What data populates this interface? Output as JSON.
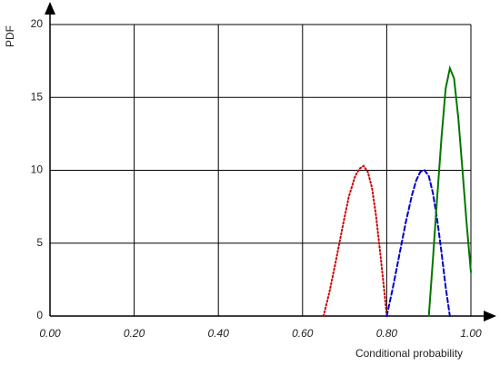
{
  "chart_data": {
    "type": "line",
    "xlabel": "Conditional probability",
    "ylabel": "PDF",
    "xlim": [
      0,
      1
    ],
    "ylim": [
      0,
      20
    ],
    "xticks": [
      {
        "value": 0,
        "label": "0.00"
      },
      {
        "value": 0.2,
        "label": "0.20"
      },
      {
        "value": 0.4,
        "label": "0.40"
      },
      {
        "value": 0.6,
        "label": "0.60"
      },
      {
        "value": 0.8,
        "label": "0.80"
      },
      {
        "value": 1,
        "label": "1.00"
      }
    ],
    "yticks": [
      0,
      5,
      10,
      15,
      20
    ],
    "grid": true,
    "series": [
      {
        "color": "#cc0000",
        "dash": "dotted",
        "x": [
          0.65,
          0.665,
          0.68,
          0.695,
          0.71,
          0.725,
          0.735,
          0.745,
          0.755,
          0.765,
          0.775,
          0.785,
          0.795,
          0.8
        ],
        "values": [
          0,
          1.8,
          3.9,
          6.1,
          8.2,
          9.6,
          10.1,
          10.3,
          9.9,
          8.8,
          6.8,
          4.2,
          1.5,
          0
        ]
      },
      {
        "color": "#0000cc",
        "dash": "dashed",
        "x": [
          0.8,
          0.815,
          0.83,
          0.845,
          0.86,
          0.87,
          0.88,
          0.89,
          0.9,
          0.91,
          0.92,
          0.93,
          0.94,
          0.95
        ],
        "values": [
          0,
          2.0,
          4.2,
          6.4,
          8.3,
          9.3,
          9.9,
          10.0,
          9.6,
          8.4,
          6.6,
          4.4,
          2.0,
          0
        ]
      },
      {
        "color": "#007700",
        "dash": "solid",
        "x": [
          0.9,
          0.91,
          0.92,
          0.93,
          0.94,
          0.95,
          0.96,
          0.97,
          0.98,
          0.99,
          1.0
        ],
        "values": [
          0,
          4.0,
          8.2,
          12.2,
          15.6,
          17.0,
          16.3,
          13.6,
          10.0,
          6.3,
          3.0
        ]
      }
    ]
  }
}
